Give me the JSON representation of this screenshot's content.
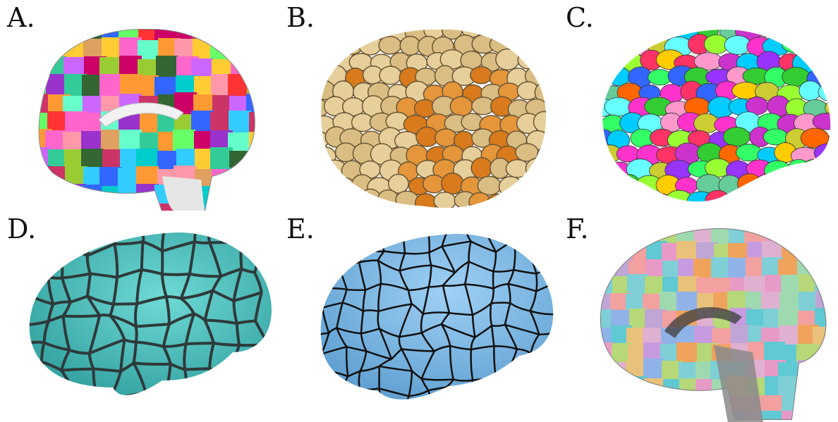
{
  "panels": [
    {
      "label": "A."
    },
    {
      "label": "B."
    },
    {
      "label": "C."
    },
    {
      "label": "D."
    },
    {
      "label": "E."
    },
    {
      "label": "F."
    }
  ],
  "colors": {
    "surface_d": "#4fc7c4",
    "surface_e": "#7ab7e8",
    "parcel_border": "#2e3a3a",
    "beige_parcel": "#e7cf9b",
    "orange_parcel": "#d97a1c"
  }
}
